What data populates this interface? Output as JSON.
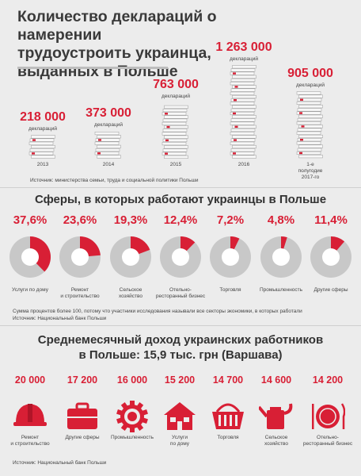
{
  "header": {
    "title_lines": [
      "Количество деклараций о намерении",
      "трудоустроить украинца,",
      "выданных в Польше"
    ]
  },
  "colors": {
    "accent": "#d81f35",
    "ring_grey": "#c8c8c8",
    "background": "#ececec"
  },
  "declarations": {
    "unit": "деклараций",
    "source": "Источник: министерства семьи, труда и социальной политики Польши",
    "items": [
      {
        "value": "218 000",
        "year": "2013"
      },
      {
        "value": "373 000",
        "year": "2014"
      },
      {
        "value": "763 000",
        "year": "2015"
      },
      {
        "value": "1 263 000",
        "year": "2016"
      },
      {
        "value": "905 000",
        "year_lines": [
          "1-е",
          "полугодие",
          "2017-го"
        ]
      }
    ]
  },
  "spheres": {
    "title": "Сферы, в которых работают украинцы в Польше",
    "note": "Сумма процентов более 100, потому что участники исследования называли все секторы экономики, в которых работали",
    "source": "Источник: Национальный банк Польши",
    "items": [
      {
        "pct": "37,6%",
        "label": [
          "Услуги по дому"
        ]
      },
      {
        "pct": "23,6%",
        "label": [
          "Ремонт",
          "и строительство"
        ]
      },
      {
        "pct": "19,3%",
        "label": [
          "Сельское",
          "хозяйство"
        ]
      },
      {
        "pct": "12,4%",
        "label": [
          "Отельно-",
          "ресторанный бизнес"
        ]
      },
      {
        "pct": "7,2%",
        "label": [
          "Торговля"
        ]
      },
      {
        "pct": "4,8%",
        "label": [
          "Промышленность"
        ]
      },
      {
        "pct": "11,4%",
        "label": [
          "Другие сферы"
        ]
      }
    ]
  },
  "income": {
    "title_lines": [
      "Среднемесячный доход украинских работников",
      "в Польше: 15,9 тыс. грн (Варшава)"
    ],
    "source": "Источник: Национальный банк Польши",
    "items": [
      {
        "value": "20 000",
        "label": [
          "Ремонт",
          "и строительство"
        ],
        "icon": "hard-hat-icon"
      },
      {
        "value": "17 200",
        "label": [
          "Другие сферы"
        ],
        "icon": "suitcase-icon"
      },
      {
        "value": "16 000",
        "label": [
          "Промышленность"
        ],
        "icon": "gear-icon"
      },
      {
        "value": "15 200",
        "label": [
          "Услуги",
          "по дому"
        ],
        "icon": "house-icon"
      },
      {
        "value": "14 700",
        "label": [
          "Торговля"
        ],
        "icon": "basket-icon"
      },
      {
        "value": "14 600",
        "label": [
          "Сельское",
          "хозяйство"
        ],
        "icon": "watering-can-icon"
      },
      {
        "value": "14 200",
        "label": [
          "Отельно-",
          "ресторанный бизнес"
        ],
        "icon": "plate-cutlery-icon"
      }
    ]
  },
  "chart_data": [
    {
      "type": "bar",
      "title": "Количество деклараций о намерении трудоустроить украинца, выданных в Польше",
      "categories": [
        "2013",
        "2014",
        "2015",
        "2016",
        "1-е полугодие 2017-го"
      ],
      "values": [
        218000,
        373000,
        763000,
        1263000,
        905000
      ]
    },
    {
      "type": "pie",
      "title": "Сферы, в которых работают украинцы в Польше",
      "categories": [
        "Услуги по дому",
        "Ремонт и строительство",
        "Сельское хозяйство",
        "Отельно-ресторанный бизнес",
        "Торговля",
        "Промышленность",
        "Другие сферы"
      ],
      "values": [
        37.6,
        23.6,
        19.3,
        12.4,
        7.2,
        4.8,
        11.4
      ]
    },
    {
      "type": "bar",
      "title": "Среднемесячный доход украинских работников в Польше: 15,9 тыс. грн (Варшава)",
      "categories": [
        "Ремонт и строительство",
        "Другие сферы",
        "Промышленность",
        "Услуги по дому",
        "Торговля",
        "Сельское хозяйство",
        "Отельно-ресторанный бизнес"
      ],
      "values": [
        20000,
        17200,
        16000,
        15200,
        14700,
        14600,
        14200
      ]
    }
  ]
}
